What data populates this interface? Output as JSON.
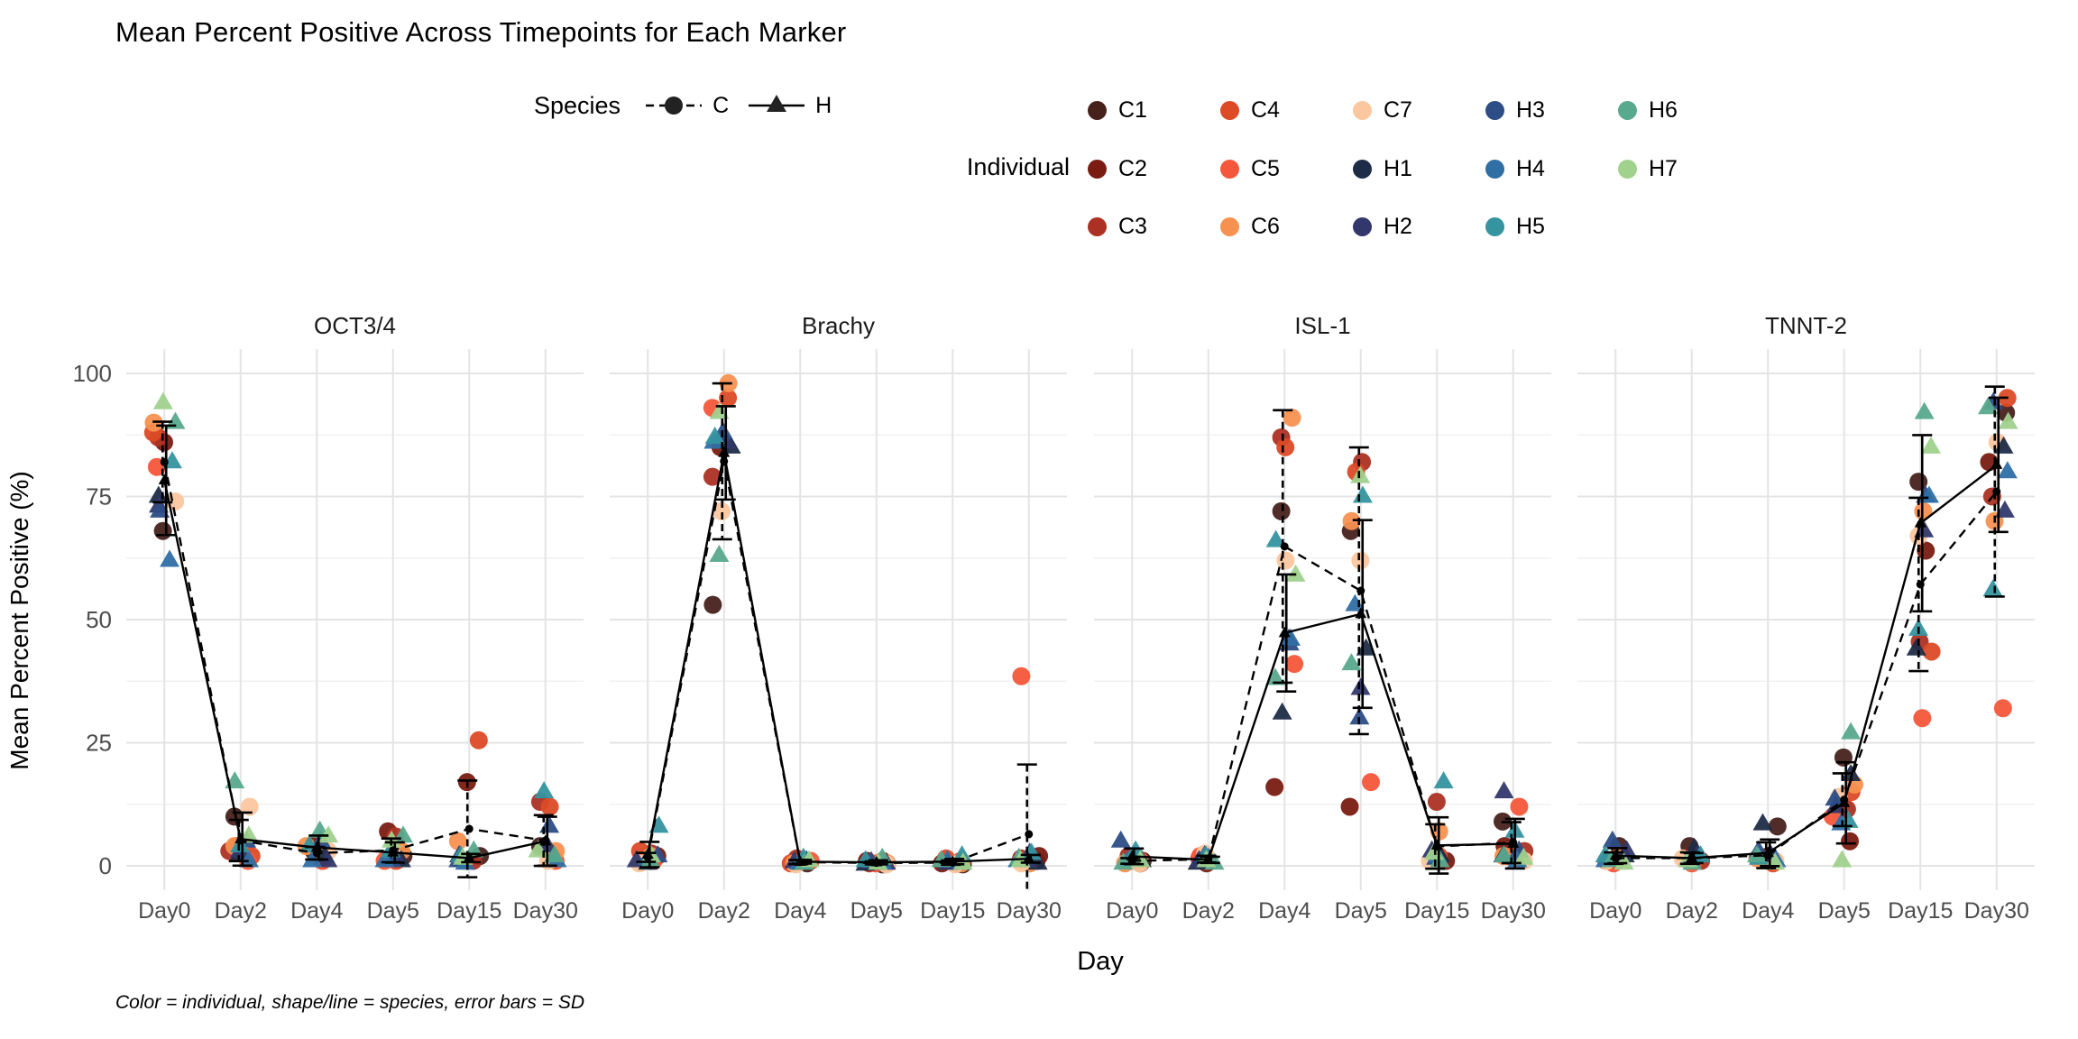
{
  "title": "Mean Percent Positive Across Timepoints for Each Marker",
  "caption": "Color = individual, shape/line = species, error bars = SD",
  "legend": {
    "species": {
      "title": "Species",
      "items": [
        {
          "label": "C",
          "shape": "circle",
          "linetype": "dashed"
        },
        {
          "label": "H",
          "shape": "triangle",
          "linetype": "solid"
        }
      ]
    },
    "individual": {
      "title": "Individual",
      "items": [
        {
          "label": "C1",
          "color": "#47221d"
        },
        {
          "label": "C2",
          "color": "#7a1c12"
        },
        {
          "label": "C3",
          "color": "#ac3124"
        },
        {
          "label": "C4",
          "color": "#dc4a26"
        },
        {
          "label": "C5",
          "color": "#f4573b"
        },
        {
          "label": "C6",
          "color": "#f79150"
        },
        {
          "label": "C7",
          "color": "#fbc79f"
        },
        {
          "label": "H1",
          "color": "#1e2c47"
        },
        {
          "label": "H2",
          "color": "#32386b"
        },
        {
          "label": "H3",
          "color": "#2c4d86"
        },
        {
          "label": "H4",
          "color": "#2f6fa4"
        },
        {
          "label": "H5",
          "color": "#35949f"
        },
        {
          "label": "H6",
          "color": "#58a98e"
        },
        {
          "label": "H7",
          "color": "#a0d18d"
        }
      ]
    }
  },
  "chart_data": {
    "type": "scatter",
    "title": "Mean Percent Positive Across Timepoints for Each Marker",
    "xlabel": "Day",
    "ylabel": "Mean Percent Positive (%)",
    "facets": [
      "OCT3/4",
      "Brachy",
      "ISL-1",
      "TNNT-2"
    ],
    "x_categories": [
      "Day0",
      "Day2",
      "Day4",
      "Day5",
      "Day15",
      "Day30"
    ],
    "ylim": [
      -5,
      105
    ],
    "yticks": [
      0,
      25,
      50,
      75,
      100
    ],
    "grid": "major+minor horizontal, major vertical",
    "stat_note": "lines = species mean, error bars = SD; C drawn dashed, H drawn solid",
    "individuals": [
      {
        "id": "C1",
        "species": "C",
        "color": "#47221d"
      },
      {
        "id": "C2",
        "species": "C",
        "color": "#7a1c12"
      },
      {
        "id": "C3",
        "species": "C",
        "color": "#ac3124"
      },
      {
        "id": "C4",
        "species": "C",
        "color": "#dc4a26"
      },
      {
        "id": "C5",
        "species": "C",
        "color": "#f4573b"
      },
      {
        "id": "C6",
        "species": "C",
        "color": "#f79150"
      },
      {
        "id": "C7",
        "species": "C",
        "color": "#fbc79f"
      },
      {
        "id": "H1",
        "species": "H",
        "color": "#1e2c47"
      },
      {
        "id": "H2",
        "species": "H",
        "color": "#32386b"
      },
      {
        "id": "H3",
        "species": "H",
        "color": "#2c4d86"
      },
      {
        "id": "H4",
        "species": "H",
        "color": "#2f6fa4"
      },
      {
        "id": "H5",
        "species": "H",
        "color": "#35949f"
      },
      {
        "id": "H6",
        "species": "H",
        "color": "#58a98e"
      },
      {
        "id": "H7",
        "species": "H",
        "color": "#a0d18d"
      }
    ],
    "values": {
      "OCT3/4": {
        "C1": [
          68,
          10,
          3,
          2,
          2,
          4
        ],
        "C2": [
          86,
          4,
          4,
          7,
          17,
          2
        ],
        "C3": [
          87,
          3,
          2,
          6,
          1,
          13
        ],
        "C4": [
          88,
          2,
          1,
          1,
          25.5,
          12
        ],
        "C5": [
          81,
          1,
          1,
          1,
          1,
          1
        ],
        "C6": [
          90,
          4,
          4,
          3,
          5,
          3
        ],
        "C7": [
          74,
          12,
          3,
          2,
          1,
          1
        ],
        "H1": [
          75,
          2,
          2,
          1,
          1,
          2
        ],
        "H2": [
          73,
          3,
          1,
          2,
          2,
          4
        ],
        "H3": [
          72,
          5,
          5,
          1,
          1,
          8
        ],
        "H4": [
          62,
          1,
          1,
          1,
          0.5,
          1
        ],
        "H5": [
          82,
          4,
          4,
          3,
          2,
          15
        ],
        "H6": [
          90,
          17,
          7,
          6,
          3,
          2
        ],
        "H7": [
          94,
          6,
          6,
          5,
          1.5,
          3
        ]
      },
      "Brachy": {
        "C1": [
          1,
          53,
          0.5,
          0.3,
          0.3,
          1
        ],
        "C2": [
          2,
          85,
          1,
          1,
          0.5,
          2
        ],
        "C3": [
          2.5,
          79,
          1.5,
          0.5,
          0.5,
          1.5
        ],
        "C4": [
          3,
          95,
          0.5,
          1,
          1.5,
          1
        ],
        "C5": [
          1,
          93,
          1,
          0.5,
          1,
          38.5
        ],
        "C6": [
          2,
          98,
          0.5,
          0.5,
          0.5,
          0.5
        ],
        "C7": [
          0.5,
          72,
          0.3,
          0.3,
          0.3,
          0.5
        ],
        "H1": [
          0.5,
          85,
          0.5,
          0.3,
          0.5,
          0.5
        ],
        "H2": [
          1,
          86,
          0.8,
          0.5,
          0.5,
          1
        ],
        "H3": [
          2,
          88,
          1,
          0.8,
          0.5,
          2.5
        ],
        "H4": [
          1.5,
          86,
          0.5,
          0.5,
          1,
          1
        ],
        "H5": [
          8,
          87,
          1.5,
          1,
          2,
          2.5
        ],
        "H6": [
          1,
          63,
          0.5,
          1.5,
          1,
          1.5
        ],
        "H7": [
          2,
          92,
          1,
          0.5,
          0.5,
          1
        ]
      },
      "ISL-1": {
        "C1": [
          1,
          1,
          72,
          68,
          2,
          9
        ],
        "C2": [
          0.5,
          0.5,
          16,
          12,
          1,
          4
        ],
        "C3": [
          2,
          1,
          87,
          82,
          13,
          3
        ],
        "C4": [
          1.5,
          1.5,
          85,
          80,
          2,
          2
        ],
        "C5": [
          1,
          2,
          41,
          17,
          1.5,
          12
        ],
        "C6": [
          0.5,
          1,
          91,
          70,
          7,
          2
        ],
        "C7": [
          0.5,
          2.5,
          62,
          62,
          1,
          1
        ],
        "H1": [
          1,
          0.5,
          31,
          44,
          2,
          2
        ],
        "H2": [
          2,
          1,
          46,
          36,
          3,
          15
        ],
        "H3": [
          5,
          2,
          45,
          30,
          1.5,
          3
        ],
        "H4": [
          1,
          1.5,
          46,
          53,
          2,
          1
        ],
        "H5": [
          3,
          2,
          66,
          75,
          17,
          7
        ],
        "H6": [
          0.5,
          0.5,
          38,
          41,
          1,
          2
        ],
        "H7": [
          1,
          1,
          59,
          79,
          2.5,
          1.5
        ]
      },
      "TNNT-2": {
        "C1": [
          4,
          4,
          8,
          22,
          78,
          92
        ],
        "C2": [
          1,
          2,
          2,
          5,
          64,
          82
        ],
        "C3": [
          2,
          1,
          1,
          11.5,
          45.5,
          75
        ],
        "C4": [
          1,
          1,
          0.5,
          15,
          43.5,
          95
        ],
        "C5": [
          0.5,
          0.5,
          1,
          10,
          30,
          32
        ],
        "C6": [
          1.5,
          1,
          1.5,
          16.5,
          72,
          70
        ],
        "C7": [
          1,
          1.5,
          1,
          14,
          67,
          86
        ],
        "H1": [
          2,
          3.5,
          8.5,
          18.5,
          44,
          85
        ],
        "H2": [
          3,
          2,
          2,
          12,
          68,
          72
        ],
        "H3": [
          5,
          1,
          3,
          13.5,
          75,
          94
        ],
        "H4": [
          1,
          1,
          1,
          8.5,
          75,
          80
        ],
        "H5": [
          2,
          2,
          1.5,
          9,
          48,
          56
        ],
        "H6": [
          1,
          0.5,
          2,
          27,
          92,
          93
        ],
        "H7": [
          0.5,
          1,
          0.5,
          1,
          85,
          90
        ]
      }
    }
  }
}
